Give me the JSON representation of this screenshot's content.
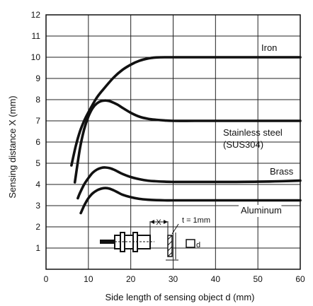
{
  "chart_data": {
    "type": "line",
    "xlabel": "Side length of sensing object d (mm)",
    "ylabel": "Sensing distance X (mm)",
    "xlim": [
      0,
      60
    ],
    "ylim": [
      0,
      12
    ],
    "x_ticks": [
      "0",
      "10",
      "20",
      "30",
      "40",
      "50",
      "60"
    ],
    "y_ticks": [
      "1",
      "2",
      "3",
      "4",
      "5",
      "6",
      "7",
      "8",
      "9",
      "10",
      "11",
      "12"
    ],
    "grid": true,
    "series": [
      {
        "name": "Iron",
        "label_lines": [
          "Iron"
        ],
        "x": [
          6,
          7,
          8,
          9,
          10,
          12,
          14,
          16,
          18,
          20,
          22,
          24,
          26,
          28,
          30,
          35,
          40,
          45,
          50,
          55,
          60
        ],
        "y": [
          4.9,
          5.8,
          6.5,
          7.0,
          7.4,
          8.1,
          8.6,
          9.05,
          9.4,
          9.65,
          9.83,
          9.94,
          9.99,
          10.0,
          10.0,
          10.0,
          10.0,
          10.0,
          10.0,
          10.0,
          10.0
        ]
      },
      {
        "name": "Stainless steel (SUS304)",
        "label_lines": [
          "Stainless steel",
          "(SUS304)"
        ],
        "x": [
          6.8,
          8,
          9,
          10,
          11,
          12,
          13,
          14,
          15,
          16,
          17,
          18,
          20,
          22,
          24,
          26,
          28,
          30,
          35,
          40,
          45,
          50,
          55,
          60
        ],
        "y": [
          4.1,
          5.7,
          6.6,
          7.2,
          7.6,
          7.82,
          7.93,
          7.96,
          7.93,
          7.85,
          7.75,
          7.62,
          7.38,
          7.2,
          7.1,
          7.05,
          7.02,
          7.0,
          7.0,
          7.0,
          7.0,
          7.0,
          7.0,
          7.0
        ]
      },
      {
        "name": "Brass",
        "label_lines": [
          "Brass"
        ],
        "x": [
          7.5,
          8,
          9,
          10,
          11,
          12,
          13,
          14,
          15,
          16,
          17,
          18,
          20,
          22,
          24,
          26,
          28,
          30,
          35,
          40,
          45,
          50,
          55,
          60
        ],
        "y": [
          3.35,
          3.6,
          4.0,
          4.3,
          4.55,
          4.7,
          4.78,
          4.8,
          4.77,
          4.7,
          4.6,
          4.5,
          4.35,
          4.25,
          4.18,
          4.15,
          4.13,
          4.12,
          4.12,
          4.12,
          4.12,
          4.13,
          4.15,
          4.18
        ]
      },
      {
        "name": "Aluminum",
        "label_lines": [
          "Aluminum"
        ],
        "x": [
          8.2,
          9,
          10,
          11,
          12,
          13,
          14,
          15,
          16,
          17,
          18,
          20,
          22,
          24,
          26,
          28,
          30,
          35,
          40,
          45,
          50,
          55,
          60
        ],
        "y": [
          2.65,
          3.0,
          3.35,
          3.58,
          3.72,
          3.8,
          3.83,
          3.8,
          3.72,
          3.62,
          3.52,
          3.4,
          3.32,
          3.28,
          3.26,
          3.25,
          3.25,
          3.25,
          3.25,
          3.25,
          3.25,
          3.25,
          3.25
        ]
      }
    ],
    "inset": {
      "x_label": "X",
      "t_label": "t = 1mm",
      "d_label": "d"
    }
  }
}
